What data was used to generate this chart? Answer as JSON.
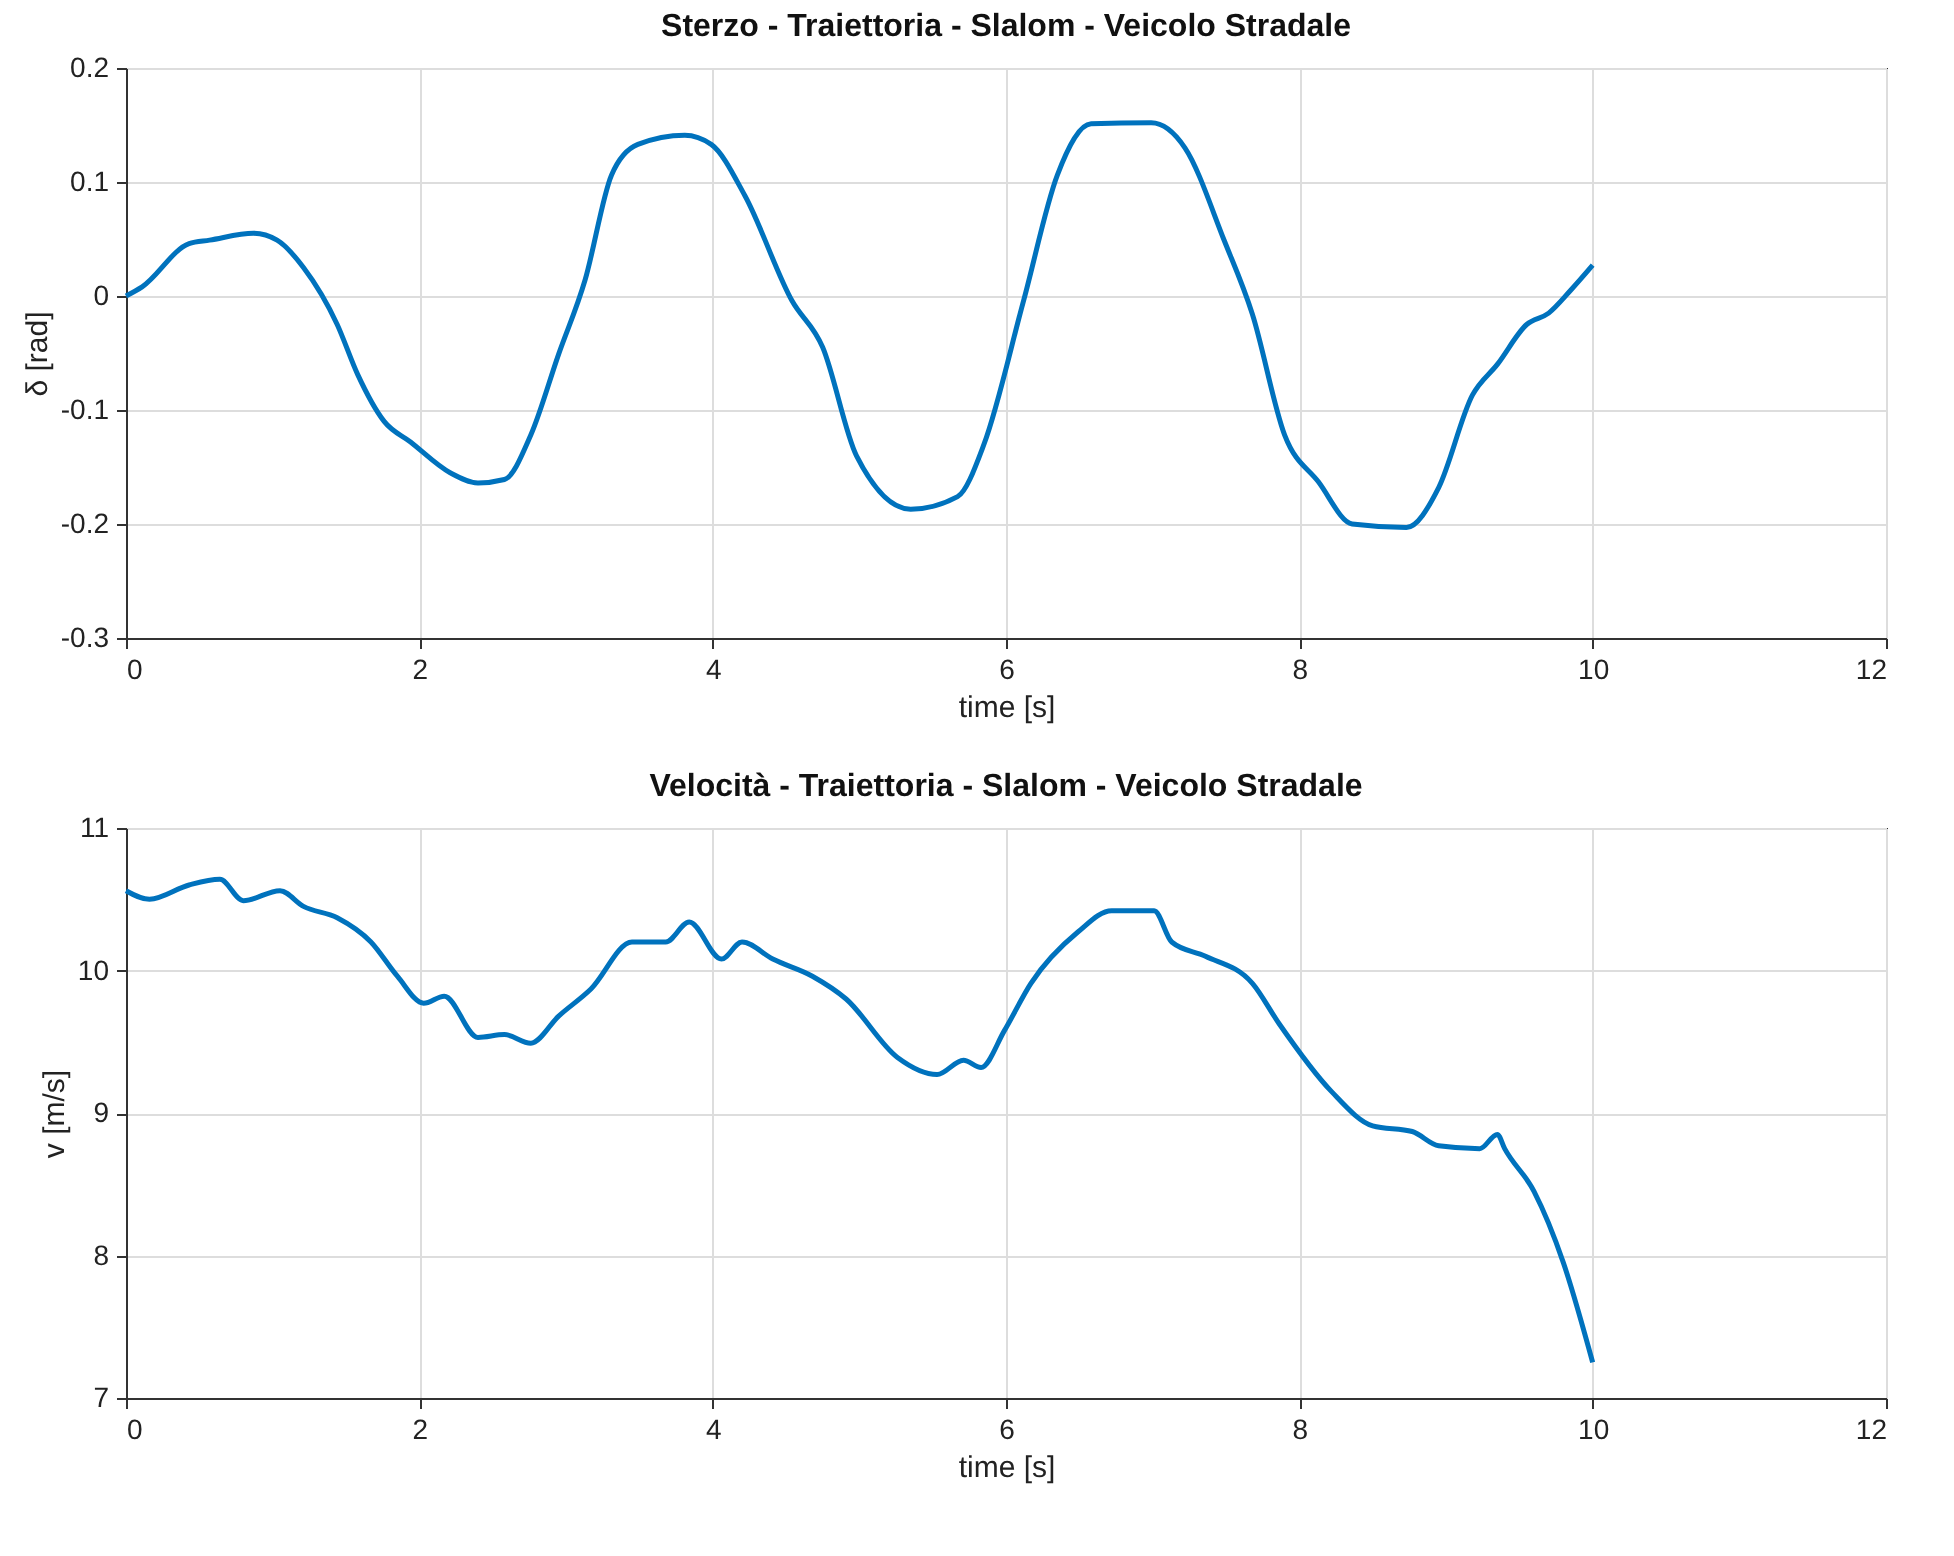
{
  "chart_data": [
    {
      "type": "line",
      "title": "Sterzo - Traiettoria - Slalom - Veicolo Stradale",
      "xlabel": "time [s]",
      "ylabel": "δ [rad]",
      "xlim": [
        0,
        12
      ],
      "xticks": [
        0,
        2,
        4,
        6,
        8,
        10,
        12
      ],
      "ylim": [
        -0.3,
        0.2
      ],
      "yticks": [
        -0.3,
        -0.2,
        -0.1,
        0,
        0.1,
        0.2
      ],
      "grid": true,
      "x": [
        0,
        0.11,
        0.43,
        0.57,
        0.87,
        1.03,
        1.21,
        1.44,
        1.58,
        1.76,
        1.94,
        2.21,
        2.4,
        2.58,
        2.76,
        2.95,
        3.13,
        3.31,
        3.49,
        3.81,
        3.99,
        4.22,
        4.54,
        4.75,
        4.98,
        5.35,
        5.67,
        5.85,
        6.12,
        6.35,
        6.58,
        6.99,
        7.22,
        7.49,
        7.68,
        7.9,
        8.13,
        8.36,
        8.73,
        8.95,
        9.18,
        9.35,
        9.55,
        9.7,
        9.85,
        10
      ],
      "series": [
        {
          "color": "#0072bd",
          "values": [
            0,
            0.008,
            0.046,
            0.049,
            0.055,
            0.049,
            0.025,
            -0.025,
            -0.069,
            -0.11,
            -0.128,
            -0.155,
            -0.164,
            -0.161,
            -0.122,
            -0.051,
            0.014,
            0.106,
            0.133,
            0.141,
            0.133,
            0.088,
            -0.004,
            -0.045,
            -0.14,
            -0.187,
            -0.176,
            -0.13,
            -0.004,
            0.106,
            0.151,
            0.152,
            0.13,
            0.048,
            -0.016,
            -0.122,
            -0.163,
            -0.2,
            -0.203,
            -0.168,
            -0.087,
            -0.06,
            -0.025,
            -0.015,
            0.005,
            0.027
          ]
        }
      ]
    },
    {
      "type": "line",
      "title": "Velocità - Traiettoria - Slalom - Veicolo Stradale",
      "xlabel": "time [s]",
      "ylabel": "v [m/s]",
      "xlim": [
        0,
        12
      ],
      "xticks": [
        0,
        2,
        4,
        6,
        8,
        10,
        12
      ],
      "ylim": [
        7,
        11
      ],
      "yticks": [
        7,
        8,
        9,
        10,
        11
      ],
      "grid": true,
      "x": [
        0,
        0.16,
        0.43,
        0.64,
        0.8,
        1.05,
        1.21,
        1.44,
        1.67,
        1.85,
        2.03,
        2.17,
        2.4,
        2.58,
        2.76,
        2.95,
        3.17,
        3.45,
        3.68,
        3.84,
        4.06,
        4.2,
        4.41,
        4.68,
        4.91,
        5.26,
        5.53,
        5.71,
        5.83,
        5.99,
        6.17,
        6.49,
        6.72,
        7.01,
        7.13,
        7.36,
        7.68,
        7.86,
        8.22,
        8.5,
        8.77,
        8.95,
        9.23,
        9.35,
        9.4,
        9.6,
        9.8,
        10
      ],
      "series": [
        {
          "color": "#0072bd",
          "values": [
            10.56,
            10.5,
            10.6,
            10.64,
            10.49,
            10.56,
            10.45,
            10.37,
            10.2,
            9.96,
            9.77,
            9.82,
            9.53,
            9.55,
            9.49,
            9.68,
            9.87,
            10.2,
            10.2,
            10.34,
            10.08,
            10.2,
            10.08,
            9.96,
            9.8,
            9.39,
            9.27,
            9.37,
            9.32,
            9.58,
            9.91,
            10.27,
            10.42,
            10.42,
            10.2,
            10.1,
            9.91,
            9.63,
            9.15,
            8.91,
            8.87,
            8.77,
            8.75,
            8.85,
            8.75,
            8.45,
            7.95,
            7.25
          ]
        }
      ]
    }
  ]
}
